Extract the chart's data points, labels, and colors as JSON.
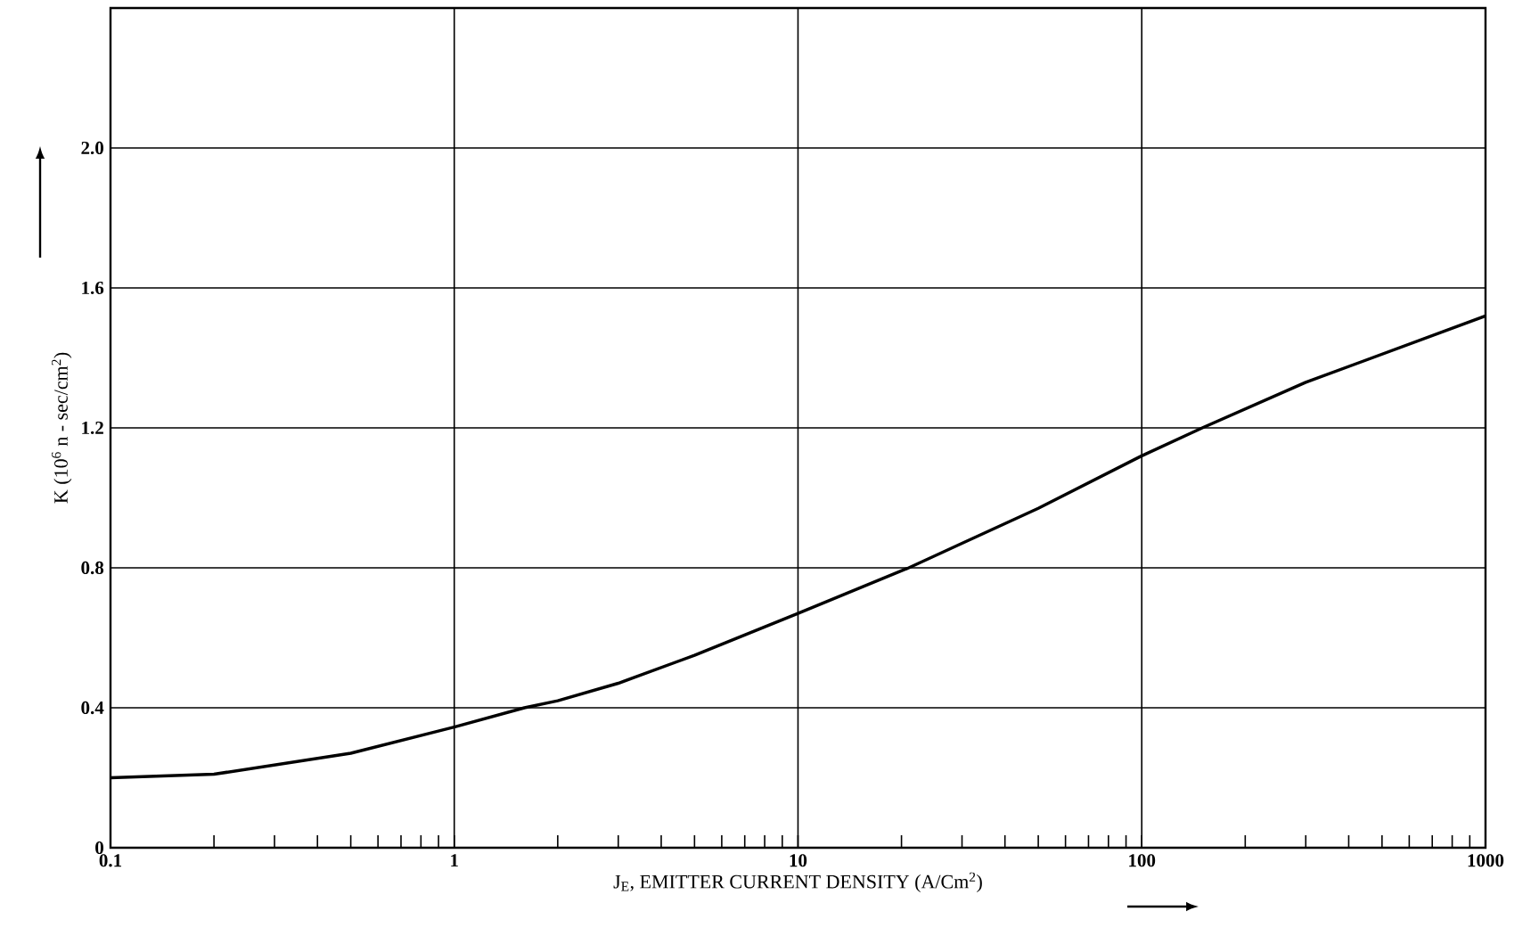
{
  "chart_data": {
    "type": "line",
    "xlabel": "J$_{E}$, EMITTER CURRENT DENSITY (A/Cm$^{2}$)",
    "ylabel": "K  (10$^{6}$ n - sec/cm$^{2}$)",
    "x": [
      0.1,
      0.2,
      0.5,
      1,
      1.6,
      2,
      3,
      5,
      10,
      21,
      30,
      50,
      100,
      150,
      300,
      1000
    ],
    "series": [
      {
        "color": "#000000",
        "values": [
          0.2,
          0.21,
          0.27,
          0.345,
          0.4,
          0.42,
          0.47,
          0.55,
          0.67,
          0.8,
          0.87,
          0.97,
          1.12,
          1.2,
          1.33,
          1.52
        ]
      }
    ],
    "xlim": [
      0.1,
      1000
    ],
    "ylim": [
      0,
      2.4
    ],
    "xticks": [
      0.1,
      1,
      10,
      100,
      1000
    ],
    "yticks": [
      0,
      0.4,
      0.8,
      1.2,
      1.6,
      {
        "value": 2,
        "label": "2.0"
      }
    ],
    "log": "x",
    "grid": true,
    "marker": "none"
  }
}
